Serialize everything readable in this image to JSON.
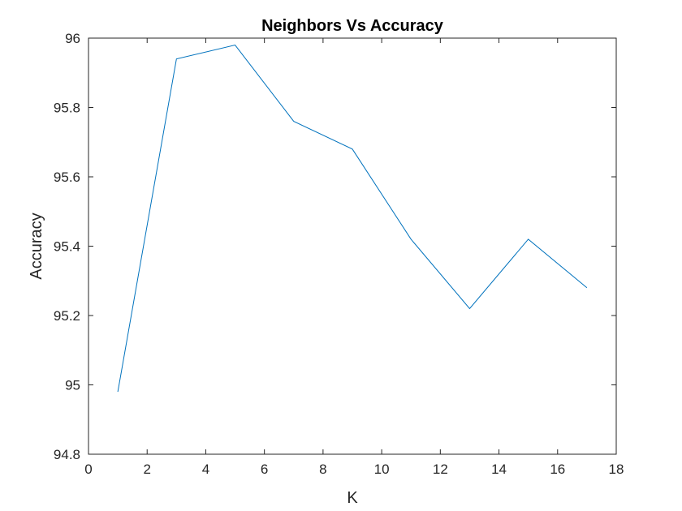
{
  "chart_data": {
    "type": "line",
    "title": "Neighbors Vs Accuracy",
    "xlabel": "K",
    "ylabel": "Accuracy",
    "xlim": [
      0,
      18
    ],
    "ylim": [
      94.8,
      96
    ],
    "xticks": [
      0,
      2,
      4,
      6,
      8,
      10,
      12,
      14,
      16,
      18
    ],
    "yticks": [
      94.8,
      95,
      95.2,
      95.4,
      95.6,
      95.8,
      96
    ],
    "xtick_labels": [
      "0",
      "2",
      "4",
      "6",
      "8",
      "10",
      "12",
      "14",
      "16",
      "18"
    ],
    "ytick_labels": [
      "94.8",
      "95",
      "95.2",
      "95.4",
      "95.6",
      "95.8",
      "96"
    ],
    "grid": false,
    "legend": "none",
    "series": [
      {
        "color": "#0072BD",
        "x": [
          1,
          3,
          5,
          7,
          9,
          11,
          13,
          15,
          17
        ],
        "y": [
          94.98,
          95.94,
          95.98,
          95.76,
          95.68,
          95.42,
          95.22,
          95.42,
          95.28
        ]
      }
    ]
  }
}
